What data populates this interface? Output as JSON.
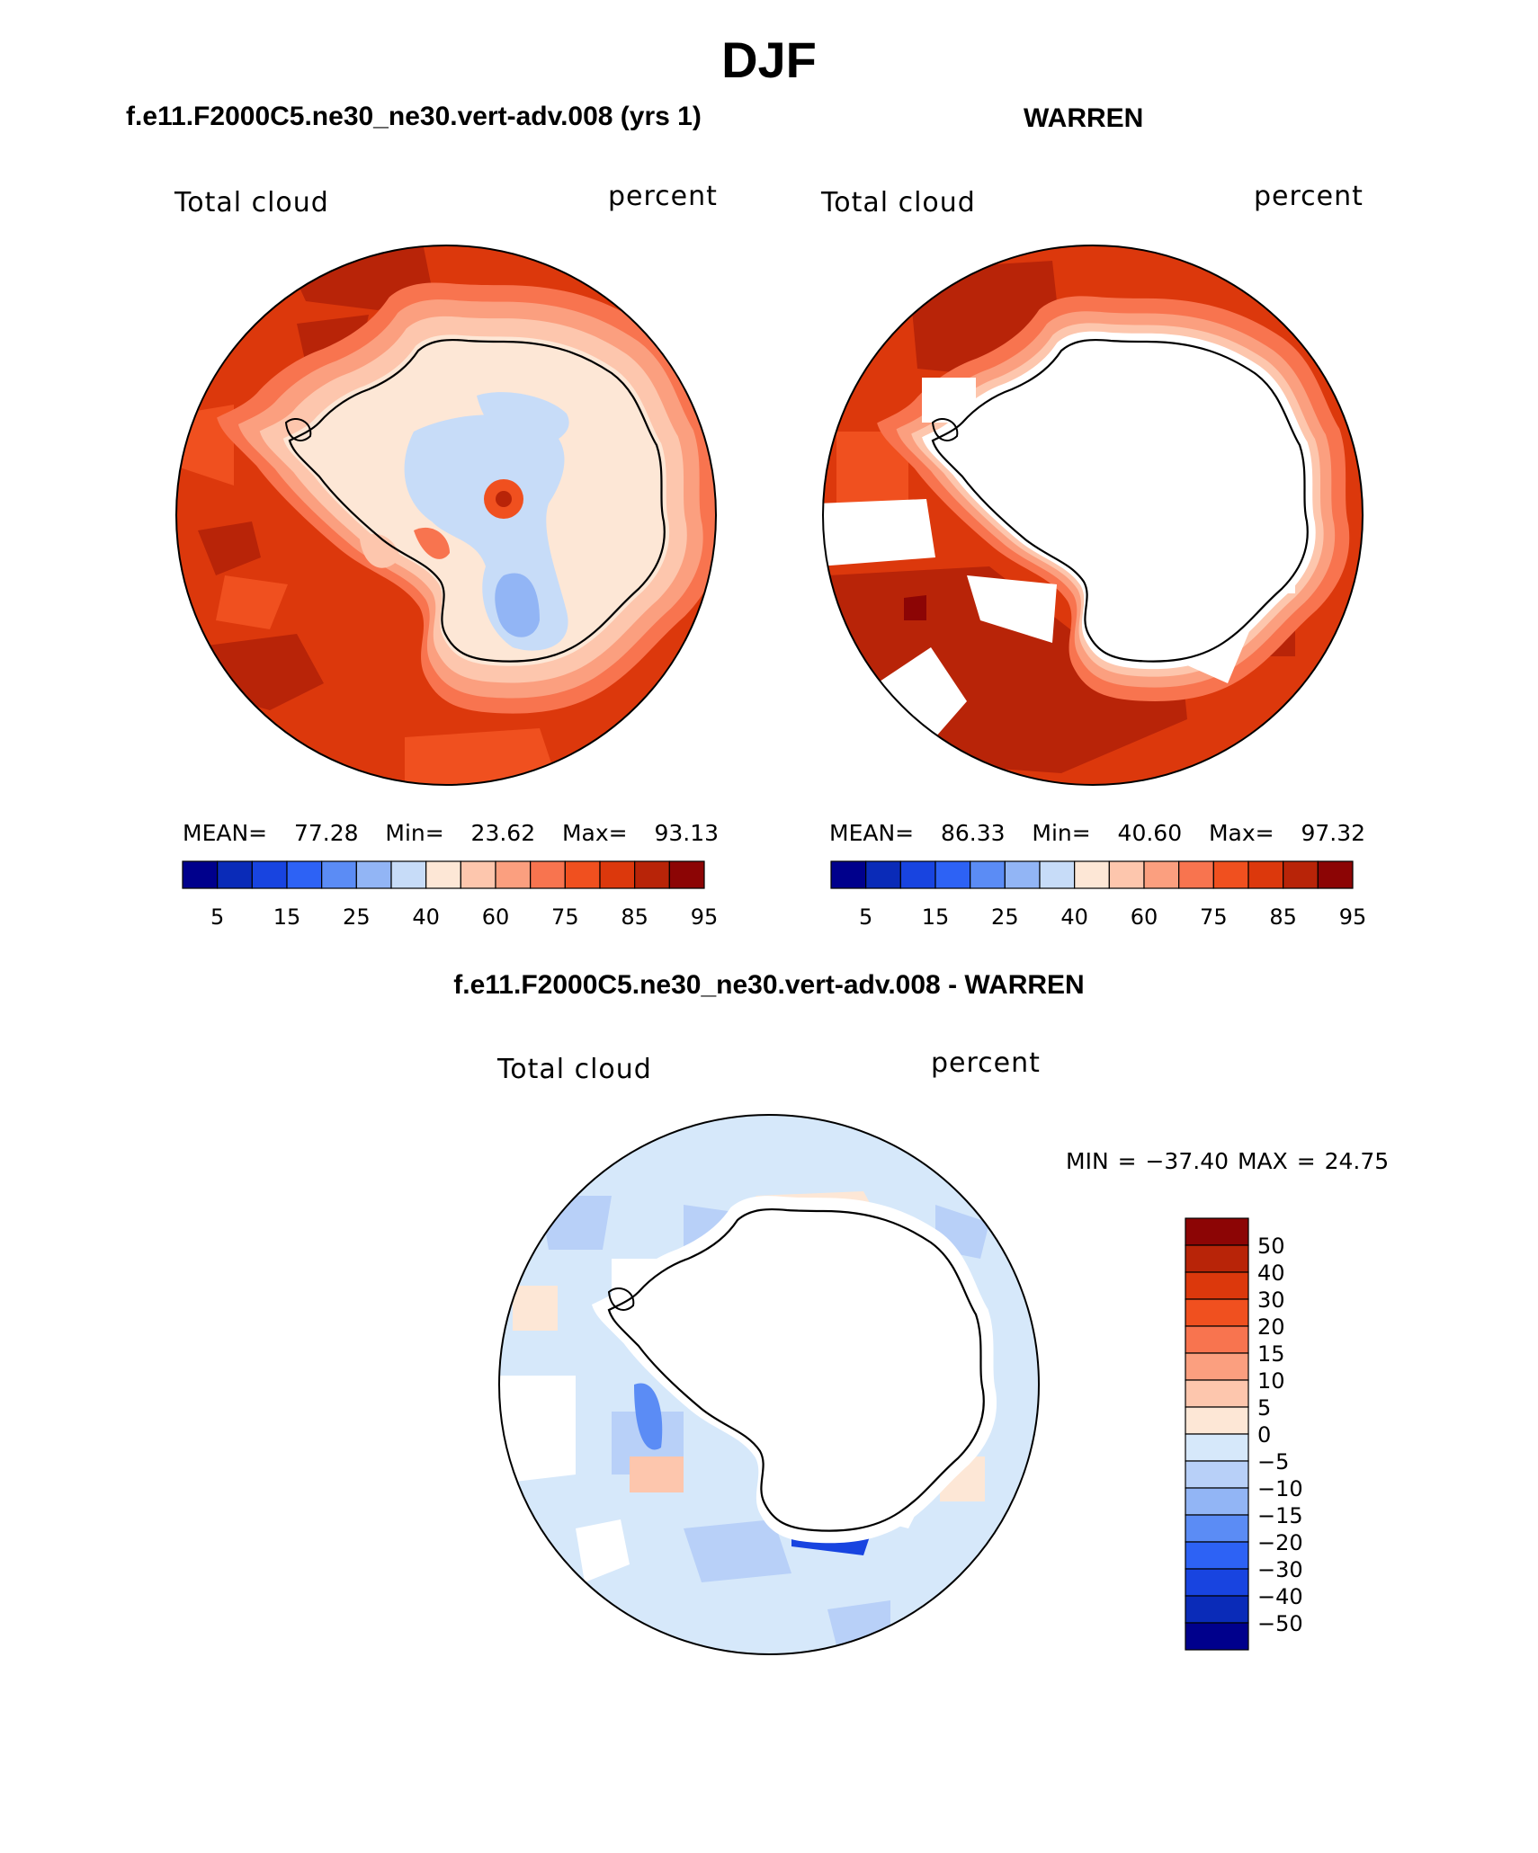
{
  "figure": {
    "title": "DJF",
    "panels": [
      {
        "id": "model",
        "title": "f.e11.F2000C5.ne30_ne30.vert-adv.008 (yrs 1)",
        "variable_label": "Total cloud",
        "units_label": "percent",
        "stats": {
          "mean_label": "MEAN=",
          "mean": "77.28",
          "min_label": "Min=",
          "min": "23.62",
          "max_label": "Max=",
          "max": "93.13"
        }
      },
      {
        "id": "obs",
        "title": "WARREN",
        "variable_label": "Total cloud",
        "units_label": "percent",
        "stats": {
          "mean_label": "MEAN=",
          "mean": "86.33",
          "min_label": "Min=",
          "min": "40.60",
          "max_label": "Max=",
          "max": "97.32"
        }
      },
      {
        "id": "diff",
        "title": "f.e11.F2000C5.ne30_ne30.vert-adv.008 - WARREN",
        "variable_label": "Total cloud",
        "units_label": "percent",
        "stats": {
          "minmax_text": "MIN = −37.40 MAX =  24.75"
        }
      }
    ]
  },
  "chart_data": [
    {
      "type": "heatmap",
      "projection": "south polar stereographic",
      "title": "f.e11.F2000C5.ne30_ne30.vert-adv.008 (yrs 1)",
      "variable": "Total cloud",
      "units": "percent",
      "mean": 77.28,
      "min": 23.62,
      "max": 93.13,
      "colorbar": {
        "orientation": "horizontal",
        "tick_labels": [
          "5",
          "15",
          "25",
          "40",
          "60",
          "75",
          "85",
          "95"
        ],
        "colors": [
          "#00008c",
          "#0a2bb8",
          "#1844e0",
          "#2d62f5",
          "#5b8cf5",
          "#92b5f5",
          "#c7dcf8",
          "#fde7d6",
          "#fdc6ad",
          "#fb9f7f",
          "#f8744f",
          "#f0501f",
          "#dc380c",
          "#b82408",
          "#8c0505"
        ]
      }
    },
    {
      "type": "heatmap",
      "projection": "south polar stereographic",
      "title": "WARREN",
      "variable": "Total cloud",
      "units": "percent",
      "mean": 86.33,
      "min": 40.6,
      "max": 97.32,
      "colorbar": {
        "orientation": "horizontal",
        "tick_labels": [
          "5",
          "15",
          "25",
          "40",
          "60",
          "75",
          "85",
          "95"
        ],
        "colors": [
          "#00008c",
          "#0a2bb8",
          "#1844e0",
          "#2d62f5",
          "#5b8cf5",
          "#92b5f5",
          "#c7dcf8",
          "#fde7d6",
          "#fdc6ad",
          "#fb9f7f",
          "#f8744f",
          "#f0501f",
          "#dc380c",
          "#b82408",
          "#8c0505"
        ]
      }
    },
    {
      "type": "heatmap",
      "projection": "south polar stereographic",
      "title": "f.e11.F2000C5.ne30_ne30.vert-adv.008 - WARREN",
      "variable": "Total cloud",
      "units": "percent",
      "min": -37.4,
      "max": 24.75,
      "colorbar": {
        "orientation": "vertical",
        "tick_labels": [
          "50",
          "40",
          "30",
          "20",
          "15",
          "10",
          "5",
          "0",
          "−5",
          "−10",
          "−15",
          "−20",
          "−30",
          "−40",
          "−50"
        ],
        "colors": [
          "#8c0505",
          "#b82408",
          "#dc380c",
          "#f0501f",
          "#f8744f",
          "#fb9f7f",
          "#fdc6ad",
          "#fde7d6",
          "#d6e8fa",
          "#b8d0f8",
          "#92b5f5",
          "#5b8cf5",
          "#2d62f5",
          "#1844e0",
          "#0a2bb8",
          "#00008c"
        ]
      }
    }
  ]
}
